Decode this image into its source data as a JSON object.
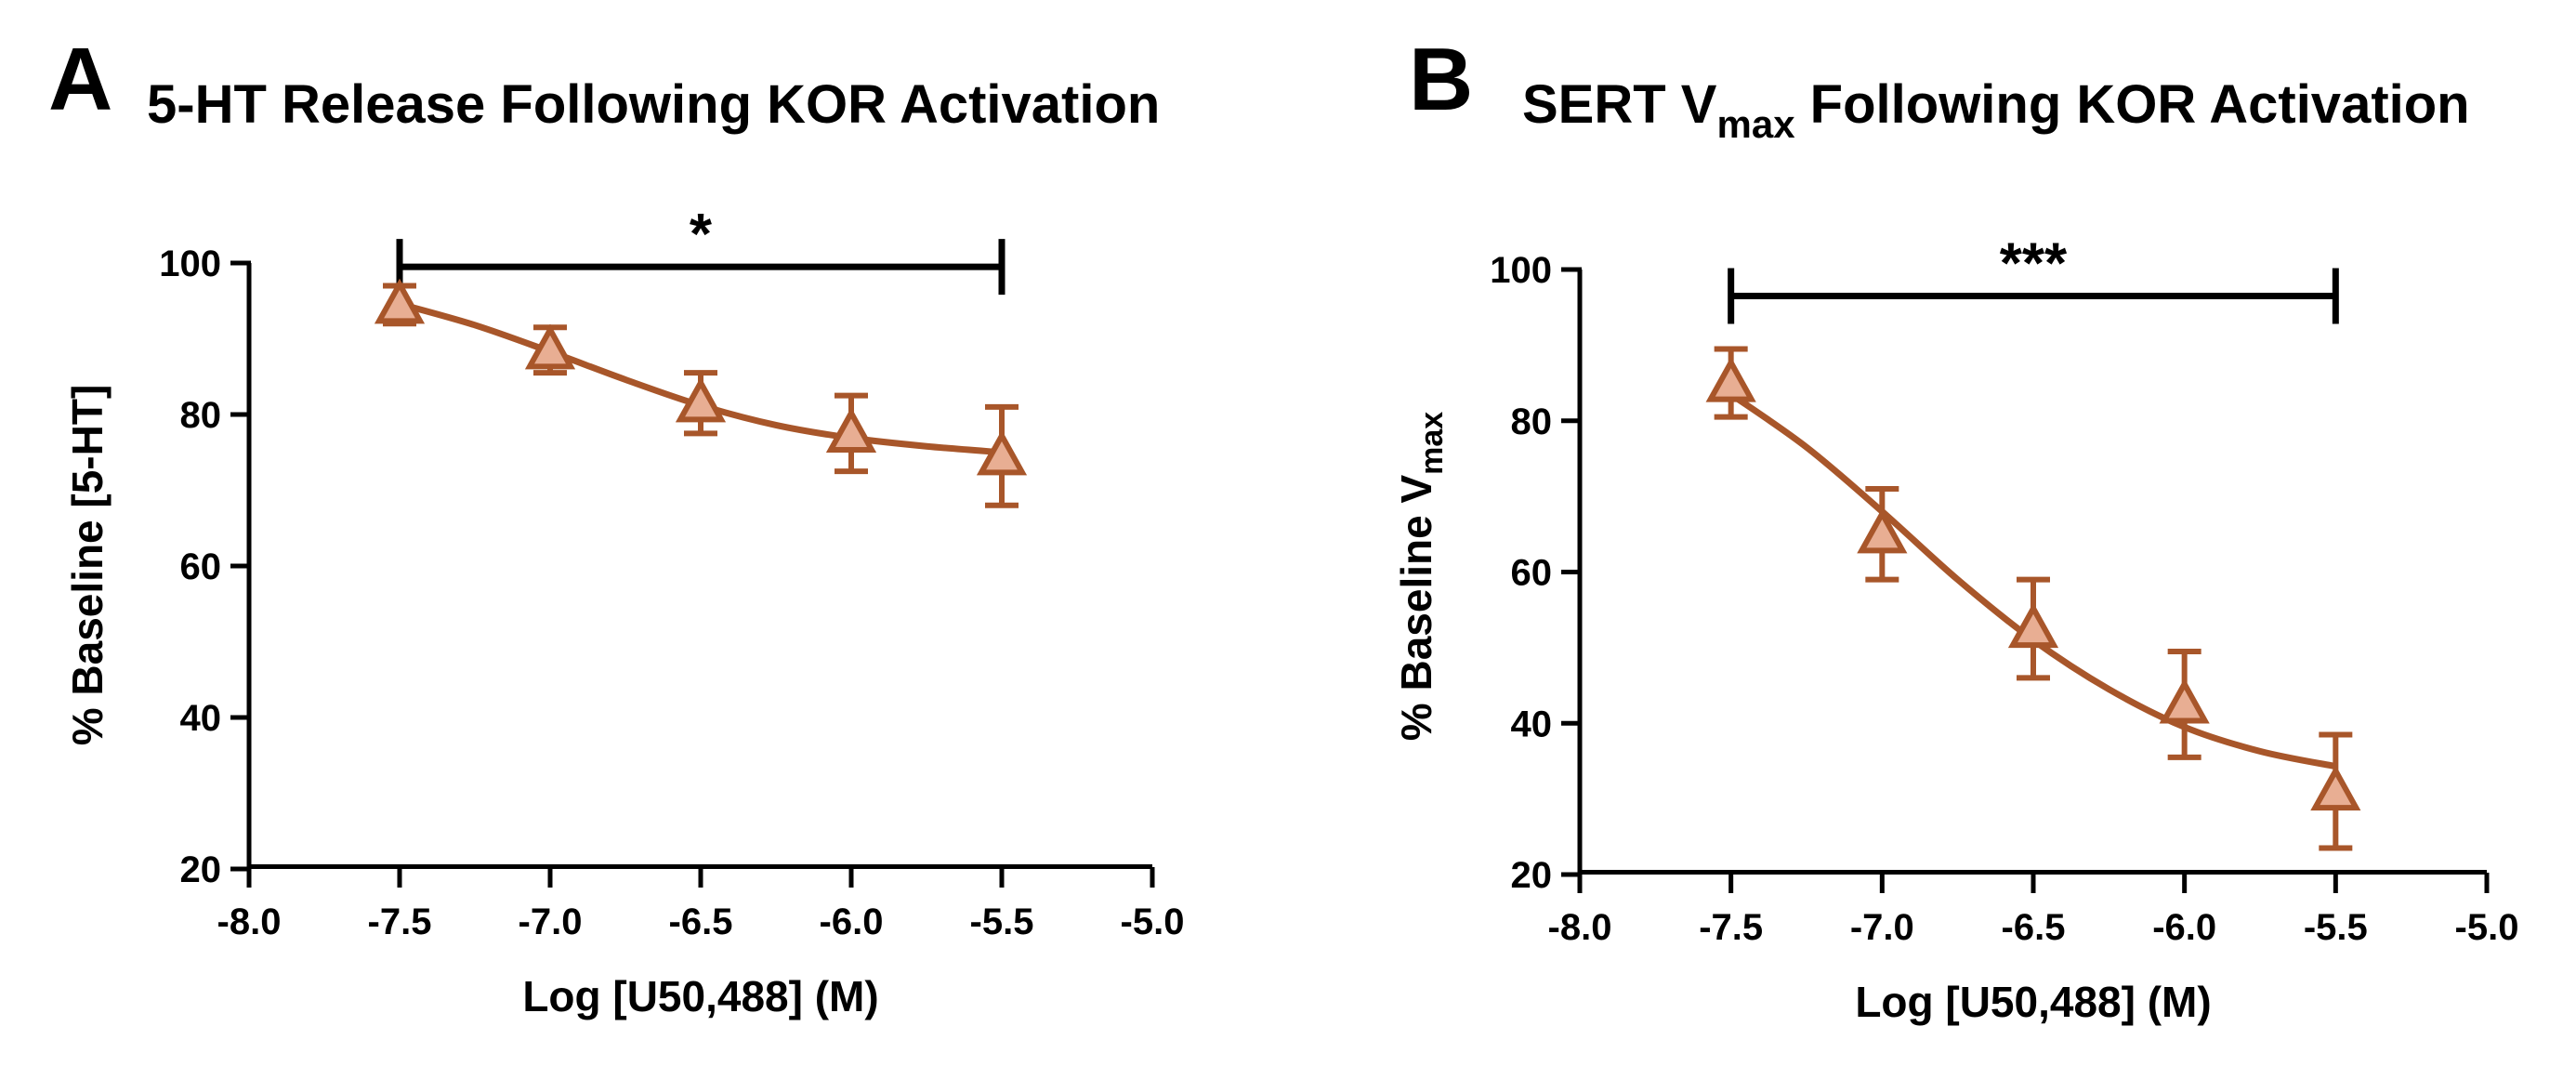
{
  "colors": {
    "curve": "#A8562A",
    "marker_fill": "#E8AE93",
    "axis": "#000000"
  },
  "chart_data": [
    {
      "type": "scatter",
      "panel": "A",
      "title": "5-HT Release Following KOR Activation",
      "xlabel": "Log [U50,488] (M)",
      "ylabel": "% Baseline [5-HT]",
      "xlim": [
        -8.0,
        -5.0
      ],
      "ylim": [
        20,
        100
      ],
      "x_ticks": [
        -8.0,
        -7.5,
        -7.0,
        -6.5,
        -6.0,
        -5.5,
        -5.0
      ],
      "x_tick_labels": [
        "-8.0",
        "-7.5",
        "-7.0",
        "-6.5",
        "-6.0",
        "-5.5",
        "-5.0"
      ],
      "y_ticks": [
        20,
        40,
        60,
        80,
        100
      ],
      "y_tick_labels": [
        "20",
        "40",
        "60",
        "80",
        "100"
      ],
      "series": [
        {
          "name": "U50,488",
          "x": [
            -7.5,
            -7.0,
            -6.5,
            -6.0,
            -5.5
          ],
          "y": [
            94.5,
            88.5,
            81.5,
            77.5,
            74.5
          ],
          "error": [
            2.5,
            3.0,
            4.0,
            5.0,
            6.5
          ]
        }
      ],
      "fit_curve": {
        "x": [
          -7.5,
          -7.25,
          -7.0,
          -6.75,
          -6.5,
          -6.25,
          -6.0,
          -5.75,
          -5.5
        ],
        "y": [
          94.6,
          91.8,
          88.3,
          84.6,
          81.2,
          78.6,
          76.9,
          75.8,
          75.0
        ]
      },
      "significance": {
        "label": "*",
        "x_start": -7.5,
        "x_end": -5.5,
        "y": 99.5
      }
    },
    {
      "type": "scatter",
      "panel": "B",
      "title_main": "SERT V",
      "title_sub": "max",
      "title_rest": " Following KOR Activation",
      "xlabel": "Log [U50,488] (M)",
      "ylabel_main": "% Baseline V",
      "ylabel_sub": "max",
      "xlim": [
        -8.0,
        -5.0
      ],
      "ylim": [
        20,
        100
      ],
      "x_ticks": [
        -8.0,
        -7.5,
        -7.0,
        -6.5,
        -6.0,
        -5.5,
        -5.0
      ],
      "x_tick_labels": [
        "-8.0",
        "-7.5",
        "-7.0",
        "-6.5",
        "-6.0",
        "-5.5",
        "-5.0"
      ],
      "y_ticks": [
        20,
        40,
        60,
        80,
        100
      ],
      "y_tick_labels": [
        "20",
        "40",
        "60",
        "80",
        "100"
      ],
      "series": [
        {
          "name": "U50,488",
          "x": [
            -7.5,
            -7.0,
            -6.5,
            -6.0,
            -5.5
          ],
          "y": [
            85.0,
            65.0,
            52.5,
            42.5,
            31.0
          ],
          "error": [
            4.5,
            6.0,
            6.5,
            7.0,
            7.5
          ]
        }
      ],
      "fit_curve": {
        "x": [
          -7.5,
          -7.25,
          -7.0,
          -6.75,
          -6.5,
          -6.25,
          -6.0,
          -5.75,
          -5.5
        ],
        "y": [
          83.5,
          76.5,
          68.0,
          59.0,
          51.0,
          44.5,
          39.5,
          36.3,
          34.3
        ]
      },
      "significance": {
        "label": "***",
        "x_start": -7.5,
        "x_end": -5.5,
        "y": 96.5
      }
    }
  ]
}
